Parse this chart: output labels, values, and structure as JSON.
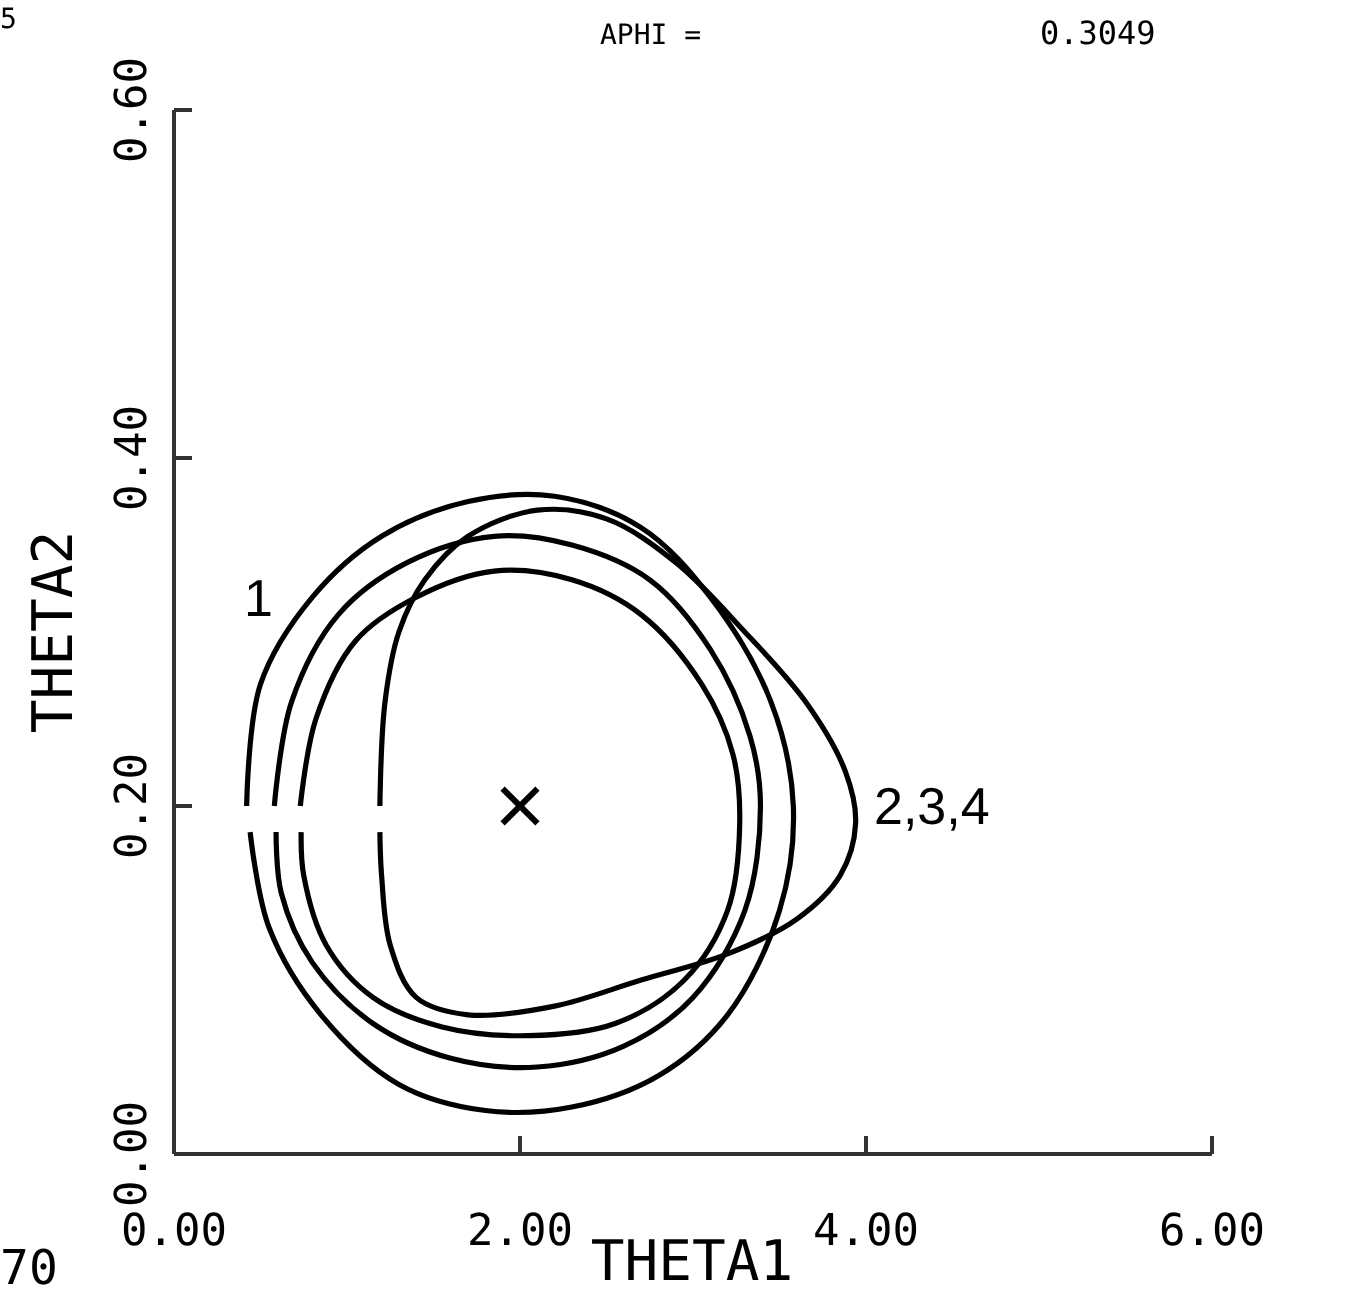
{
  "chart_data": {
    "type": "line",
    "xlabel": "THETA1",
    "ylabel": "THETA2",
    "xlim": [
      0,
      6
    ],
    "ylim": [
      0,
      0.6
    ],
    "xticks": [
      {
        "value": 0,
        "label": "0.00"
      },
      {
        "value": 2,
        "label": "2.00"
      },
      {
        "value": 4,
        "label": "4.00"
      },
      {
        "value": 6,
        "label": "6.00"
      }
    ],
    "yticks": [
      {
        "value": 0,
        "label": "0.00"
      },
      {
        "value": 0.2,
        "label": "0.20"
      },
      {
        "value": 0.4,
        "label": "0.40"
      },
      {
        "value": 0.6,
        "label": "0.60"
      }
    ],
    "marker": "none",
    "line_style": "solid",
    "series": [
      {
        "color": "#000000",
        "x": [
          0.42,
          0.5,
          0.8,
          1.2,
          1.7,
          2.2,
          2.7,
          3.1,
          3.45,
          3.58,
          3.5,
          3.2,
          2.8,
          2.3,
          1.8,
          1.3,
          0.85,
          0.55,
          0.44
        ],
        "values": [
          0.2,
          0.27,
          0.32,
          0.355,
          0.375,
          0.378,
          0.36,
          0.32,
          0.26,
          0.2,
          0.14,
          0.08,
          0.045,
          0.027,
          0.025,
          0.04,
          0.08,
          0.13,
          0.185
        ]
      },
      {
        "color": "#000000",
        "x": [
          0.58,
          0.68,
          0.95,
          1.35,
          1.85,
          2.3,
          2.75,
          3.1,
          3.33,
          3.39,
          3.3,
          3.0,
          2.6,
          2.1,
          1.6,
          1.15,
          0.8,
          0.62,
          0.59
        ],
        "values": [
          0.2,
          0.26,
          0.31,
          0.34,
          0.355,
          0.35,
          0.33,
          0.29,
          0.24,
          0.2,
          0.14,
          0.09,
          0.062,
          0.05,
          0.055,
          0.075,
          0.11,
          0.15,
          0.185
        ]
      },
      {
        "color": "#000000",
        "x": [
          0.73,
          0.82,
          1.05,
          1.4,
          1.85,
          2.3,
          2.7,
          3.05,
          3.23,
          3.27,
          3.2,
          2.95,
          2.55,
          2.05,
          1.55,
          1.15,
          0.88,
          0.75,
          0.735
        ],
        "values": [
          0.2,
          0.25,
          0.295,
          0.32,
          0.335,
          0.33,
          0.31,
          0.27,
          0.23,
          0.19,
          0.14,
          0.1,
          0.075,
          0.068,
          0.073,
          0.09,
          0.12,
          0.16,
          0.185
        ]
      },
      {
        "color": "#000000",
        "x": [
          1.19,
          1.22,
          1.3,
          1.45,
          1.7,
          2.1,
          2.5,
          2.9,
          3.3,
          3.65,
          3.88,
          3.94,
          3.85,
          3.6,
          3.2,
          2.7,
          2.2,
          1.7,
          1.4,
          1.25,
          1.2,
          1.19
        ],
        "values": [
          0.2,
          0.26,
          0.3,
          0.33,
          0.355,
          0.37,
          0.365,
          0.34,
          0.3,
          0.26,
          0.22,
          0.19,
          0.16,
          0.135,
          0.115,
          0.1,
          0.085,
          0.08,
          0.09,
          0.12,
          0.16,
          0.185
        ]
      },
      {
        "type": "scatter",
        "color": "#000000",
        "marker": "cross",
        "x": [
          2
        ],
        "values": [
          0.2
        ]
      }
    ],
    "annotations": [
      "1",
      "2,3,4",
      "APHI  =",
      "0.3049",
      "5",
      "70"
    ]
  }
}
